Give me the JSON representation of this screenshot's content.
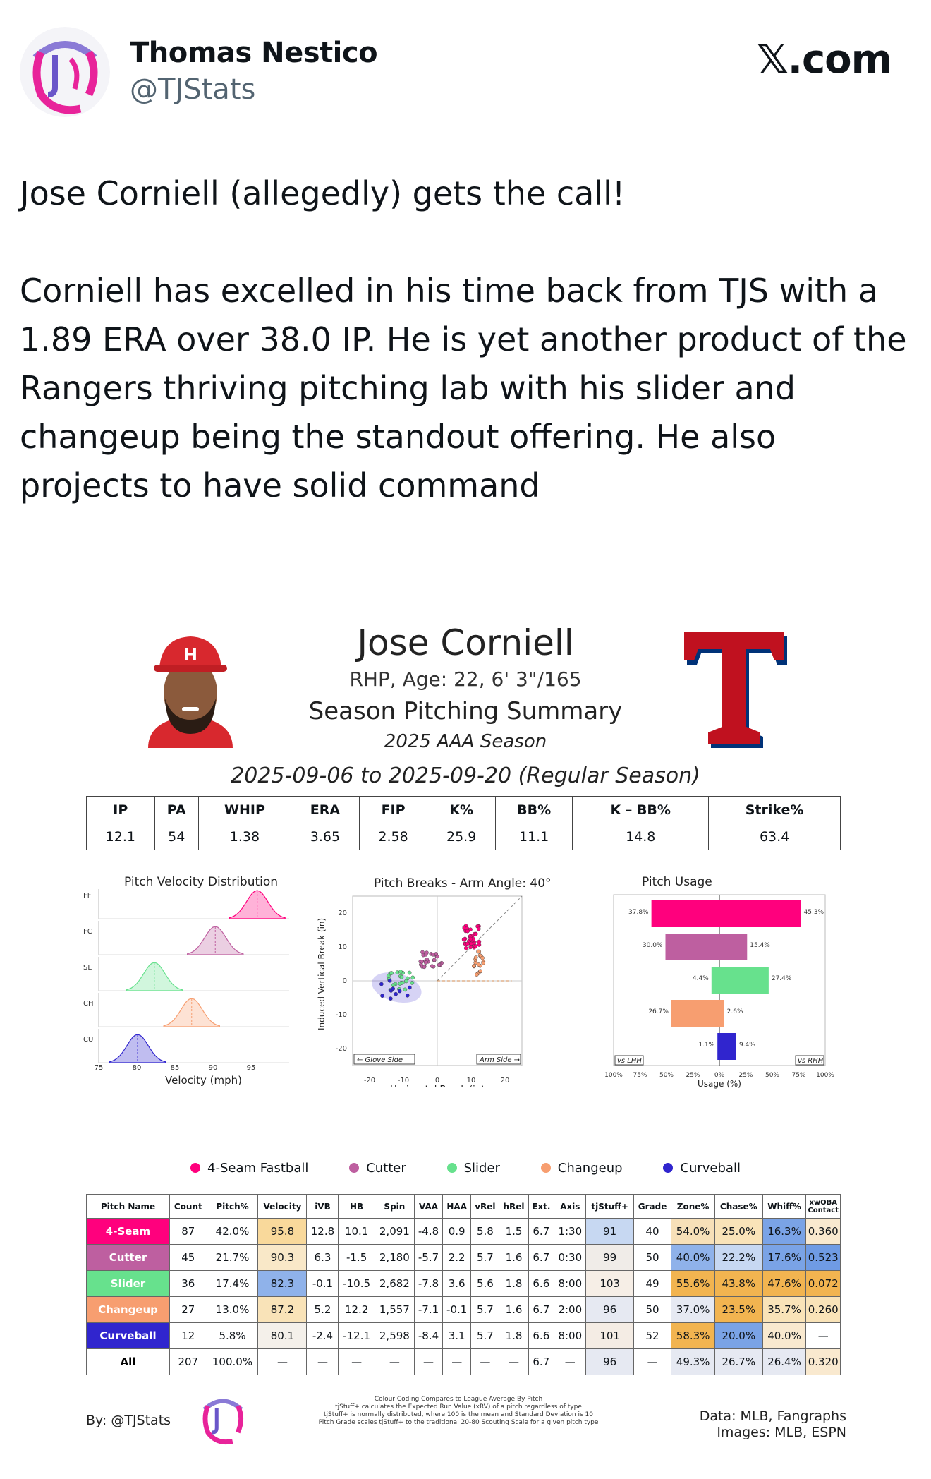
{
  "author": {
    "name": "Thomas Nestico",
    "handle": "@TJStats"
  },
  "brand": "𝕏.com",
  "tweet": {
    "line1": "Jose Corniell (allegedly) gets the call!",
    "body": "Corniell has excelled in his time back from TJS with a 1.89 ERA over 38.0 IP. He is yet another product of the Rangers thriving pitching lab with his slider and changeup being the standout offering. He also projects to have solid command"
  },
  "card": {
    "player_name": "Jose Corniell",
    "subtitle": "RHP, Age: 22, 6' 3\"/165",
    "title": "Season Pitching Summary",
    "season": "2025 AAA Season",
    "dates": "2025-09-06 to 2025-09-20 (Regular Season)",
    "stats_headers": [
      "IP",
      "PA",
      "WHIP",
      "ERA",
      "FIP",
      "K%",
      "BB%",
      "K – BB%",
      "Strike%"
    ],
    "stats_values": [
      "12.1",
      "54",
      "1.38",
      "3.65",
      "2.58",
      "25.9",
      "11.1",
      "14.8",
      "63.4"
    ],
    "velocity_plot": {
      "title": "Pitch Velocity Distribution",
      "xlabel": "Velocity (mph)",
      "rows": [
        "FF",
        "FC",
        "SL",
        "CH",
        "CU"
      ],
      "ticks": [
        "75",
        "80",
        "85",
        "90",
        "95"
      ]
    },
    "break_plot": {
      "title": "Pitch Breaks - Arm Angle: 40°",
      "xlabel": "Horizontal Break (in)",
      "ylabel": "Induced Vertical Break (in)",
      "yticks": [
        "20",
        "10",
        "0",
        "-10",
        "-20"
      ],
      "xticks": [
        "-20",
        "-10",
        "0",
        "10",
        "20"
      ],
      "glove": "← Glove Side",
      "arm": "Arm Side →"
    },
    "usage_plot": {
      "title": "Pitch Usage",
      "xlabel": "Usage (%)",
      "vs_lhh": "vs LHH",
      "vs_rhh": "vs RHH",
      "ticks": [
        "100%",
        "75%",
        "50%",
        "25%",
        "0%",
        "25%",
        "50%",
        "75%",
        "100%"
      ],
      "bars": [
        {
          "lhh": 37.8,
          "rhh": 45.3,
          "lhh_label": "37.8%",
          "rhh_label": "45.3%",
          "color": "#ff007d"
        },
        {
          "lhh": 30.0,
          "rhh": 15.4,
          "lhh_label": "30.0%",
          "rhh_label": "15.4%",
          "color": "#be5fa0"
        },
        {
          "lhh": 4.4,
          "rhh": 27.4,
          "lhh_label": "4.4%",
          "rhh_label": "27.4%",
          "color": "#67e18d"
        },
        {
          "lhh": 26.7,
          "rhh": 2.6,
          "lhh_label": "26.7%",
          "rhh_label": "2.6%",
          "color": "#f79e70"
        },
        {
          "lhh": 1.1,
          "rhh": 9.4,
          "lhh_label": "1.1%",
          "rhh_label": "9.4%",
          "color": "#3025ce"
        }
      ]
    },
    "legend": [
      {
        "label": "4-Seam Fastball",
        "color": "#ff007d"
      },
      {
        "label": "Cutter",
        "color": "#be5fa0"
      },
      {
        "label": "Slider",
        "color": "#67e18d"
      },
      {
        "label": "Changeup",
        "color": "#f79e70"
      },
      {
        "label": "Curveball",
        "color": "#3025ce"
      }
    ],
    "pitch_table": {
      "headers": [
        "Pitch Name",
        "Count",
        "Pitch%",
        "Velocity",
        "iVB",
        "HB",
        "Spin",
        "VAA",
        "HAA",
        "vRel",
        "hRel",
        "Ext.",
        "Axis",
        "tjStuff+",
        "Grade",
        "Zone%",
        "Chase%",
        "Whiff%",
        "xwOBA Contact"
      ],
      "rows": [
        {
          "name": "4-Seam",
          "color": "#ff007d",
          "cells": [
            "87",
            "42.0%",
            "95.8",
            "12.8",
            "10.1",
            "2,091",
            "-4.8",
            "0.9",
            "5.8",
            "1.5",
            "6.7",
            "1:30",
            "91",
            "40",
            "54.0%",
            "25.0%",
            "16.3%",
            "0.360"
          ]
        },
        {
          "name": "Cutter",
          "color": "#be5fa0",
          "cells": [
            "45",
            "21.7%",
            "90.3",
            "6.3",
            "-1.5",
            "2,180",
            "-5.7",
            "2.2",
            "5.7",
            "1.6",
            "6.7",
            "0:30",
            "99",
            "50",
            "40.0%",
            "22.2%",
            "17.6%",
            "0.523"
          ]
        },
        {
          "name": "Slider",
          "color": "#67e18d",
          "cells": [
            "36",
            "17.4%",
            "82.3",
            "-0.1",
            "-10.5",
            "2,682",
            "-7.8",
            "3.6",
            "5.6",
            "1.8",
            "6.6",
            "8:00",
            "103",
            "49",
            "55.6%",
            "43.8%",
            "47.6%",
            "0.072"
          ]
        },
        {
          "name": "Changeup",
          "color": "#f79e70",
          "cells": [
            "27",
            "13.0%",
            "87.2",
            "5.2",
            "12.2",
            "1,557",
            "-7.1",
            "-0.1",
            "5.7",
            "1.6",
            "6.7",
            "2:00",
            "96",
            "50",
            "37.0%",
            "23.5%",
            "35.7%",
            "0.260"
          ]
        },
        {
          "name": "Curveball",
          "color": "#3025ce",
          "cells": [
            "12",
            "5.8%",
            "80.1",
            "-2.4",
            "-12.1",
            "2,598",
            "-8.4",
            "3.1",
            "5.7",
            "1.8",
            "6.6",
            "8:00",
            "101",
            "52",
            "58.3%",
            "20.0%",
            "40.0%",
            "—"
          ]
        },
        {
          "name": "All",
          "color": "#ffffff",
          "cells": [
            "207",
            "100.0%",
            "—",
            "—",
            "—",
            "—",
            "—",
            "—",
            "—",
            "—",
            "6.7",
            "—",
            "96",
            "—",
            "49.3%",
            "26.7%",
            "26.4%",
            "0.320"
          ]
        }
      ]
    },
    "footer": {
      "by": "By: @TJStats",
      "note1": "Colour Coding Compares to League Average By Pitch",
      "note2": "tjStuff+ calculates the Expected Run Value (xRV) of a pitch regardless of type",
      "note3": "tjStuff+ is normally distributed, where 100 is the mean and Standard Deviation is 10",
      "note4": "Pitch Grade scales tjStuff+ to the traditional 20-80 Scouting Scale for a given pitch type",
      "data": "Data: MLB, Fangraphs",
      "images": "Images: MLB, ESPN"
    }
  }
}
